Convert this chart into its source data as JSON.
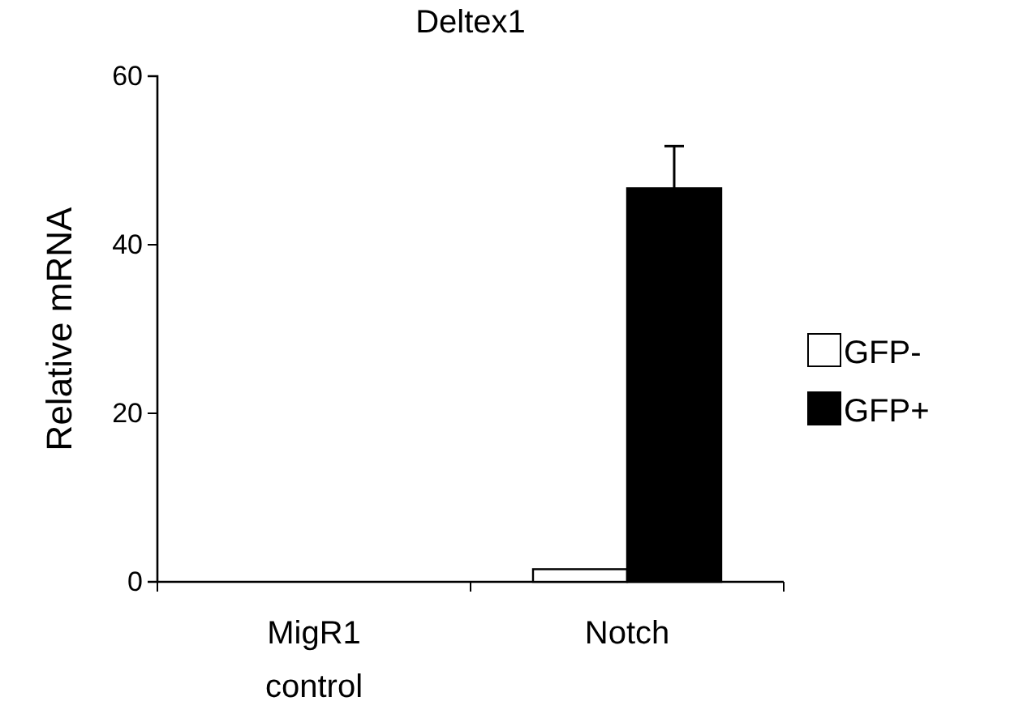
{
  "chart_data": {
    "type": "bar",
    "title": "Deltex1",
    "ylabel": "Relative mRNA",
    "categories": [
      "MigR1 control",
      "Notch"
    ],
    "series": [
      {
        "name": "GFP-",
        "color": "#ffffff",
        "values": [
          0,
          1.5
        ],
        "errors": [
          null,
          null
        ]
      },
      {
        "name": "GFP+",
        "color": "#000000",
        "values": [
          0,
          46.7
        ],
        "errors": [
          null,
          5
        ]
      }
    ],
    "ylim": [
      0,
      60
    ],
    "yticks": [
      0,
      20,
      40,
      60
    ],
    "grid": false,
    "legend": "right"
  }
}
